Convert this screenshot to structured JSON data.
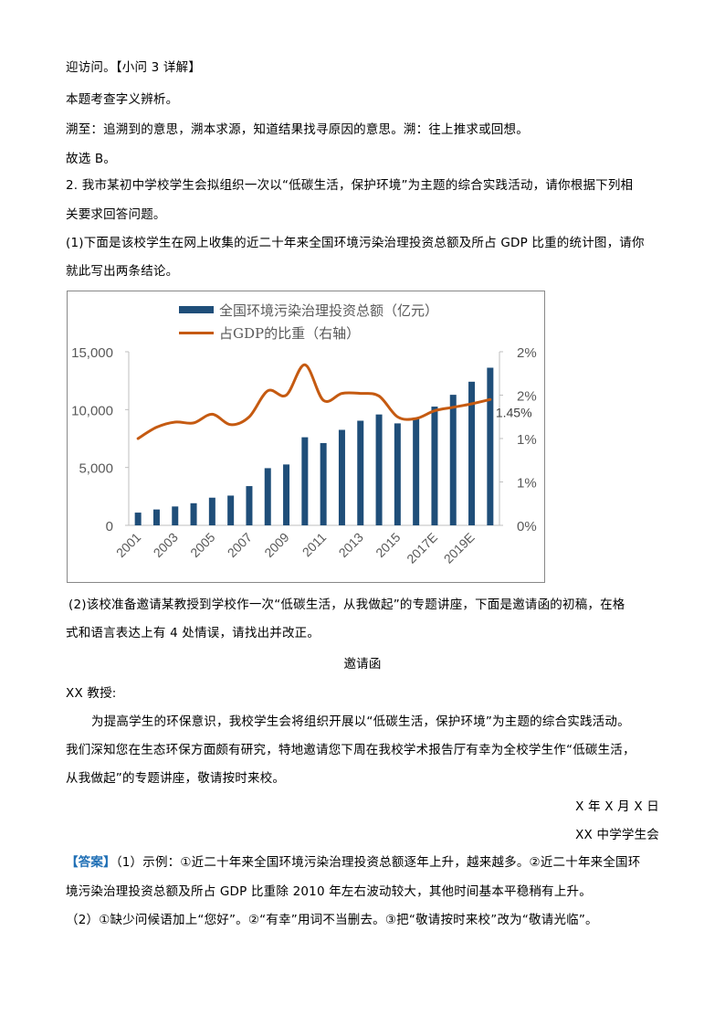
{
  "lines": {
    "l1": "迎访问。【小问 3 详解】",
    "l2": "本题考查字义辨析。",
    "l3": "溯至：追溯到的意思，溯本求源，知道结果找寻原因的意思。溯：往上推求或回想。",
    "l4": "故选 B。",
    "l5": "2. 我市某初中学校学生会拟组织一次以“低碳生活，保护环境”为主题的综合实践活动，请你根据下列相",
    "l6": "关要求回答问题。",
    "l7": "(1)下面是该校学生在网上收集的近二十年来全国环境污染治理投资总额及所占 GDP 比重的统计图，请你",
    "l8": "就此写出两条结论。",
    "l9": "(2)该校准备邀请某教授到学校作一次“低碳生活，从我做起”的专题讲座，下面是邀请函的初稿，在格",
    "l10": "式和语言表达上有 4 处情误，请找出并改正。"
  },
  "letter": {
    "title": "邀请函",
    "salutation": "XX 教授:",
    "body1": "为提高学生的环保意识，我校学生会将组织开展以“低碳生活，保护环境”为主题的综合实践活动。",
    "body2": "我们深知您在生态环保方面颇有研究，特地邀请您下周在我校学术报告厅有幸为全校学生作“低碳生活，",
    "body3": "从我做起”的专题讲座，敬请按时来校。",
    "date": "X 年 X 月 X 日",
    "signature": "XX 中学学生会"
  },
  "answer": {
    "tag": "【答案】",
    "a1": "（1）示例：①近二十年来全国环境污染治理投资总额逐年上升，越来越多。②近二十年来全国环",
    "a2": "境污染治理投资总额及所占 GDP 比重除 2010 年左右波动较大，其他时间基本平稳稍有上升。",
    "a3": "（2）①缺少问候语加上“您好”。②“有幸”用词不当删去。③把“敬请按时来校”改为“敬请光临”。"
  },
  "colors": {
    "bar": "#1f4e79",
    "line": "#c55a11",
    "axis": "#bfbfbf",
    "answer_tag": "#1f6fb5"
  },
  "chart_data": {
    "type": "bar+line",
    "title": "",
    "legend": [
      "全国环境污染治理投资总额（亿元）",
      "占GDP的比重（右轴）"
    ],
    "legend_position": "top",
    "categories": [
      "2001",
      "2002",
      "2003",
      "2004",
      "2005",
      "2006",
      "2007",
      "2008",
      "2009",
      "2010",
      "2011",
      "2012",
      "2013",
      "2014",
      "2015",
      "2016",
      "2017E",
      "2018E",
      "2019E",
      "2020E"
    ],
    "x_tick_labels": [
      "2001",
      "2003",
      "2005",
      "2007",
      "2009",
      "2011",
      "2013",
      "2015",
      "2017E",
      "2019E"
    ],
    "series": [
      {
        "name": "全国环境污染治理投资总额（亿元）",
        "type": "bar",
        "axis": "left",
        "values": [
          1100,
          1370,
          1630,
          1910,
          2390,
          2570,
          3390,
          4940,
          5260,
          7610,
          7110,
          8250,
          9040,
          9580,
          8810,
          9290,
          10260,
          11280,
          12410,
          13620
        ]
      },
      {
        "name": "占GDP的比重（右轴）",
        "type": "line",
        "axis": "right",
        "values": [
          1.0,
          1.13,
          1.19,
          1.18,
          1.28,
          1.16,
          1.25,
          1.55,
          1.5,
          1.85,
          1.44,
          1.52,
          1.52,
          1.49,
          1.25,
          1.23,
          1.32,
          1.36,
          1.4,
          1.45
        ]
      }
    ],
    "y_left": {
      "ticks": [
        0,
        5000,
        10000,
        15000
      ],
      "tick_labels": [
        "0",
        "5,000",
        "10,000",
        "15,000"
      ],
      "range": [
        0,
        15000
      ]
    },
    "y_right": {
      "ticks": [
        0,
        0.5,
        1.0,
        1.5,
        2.0
      ],
      "tick_labels": [
        "0%",
        "1%",
        "1%",
        "2%",
        "2%"
      ],
      "range": [
        0,
        2.0
      ]
    },
    "annotations": [
      "1.45%"
    ],
    "grid": false
  }
}
